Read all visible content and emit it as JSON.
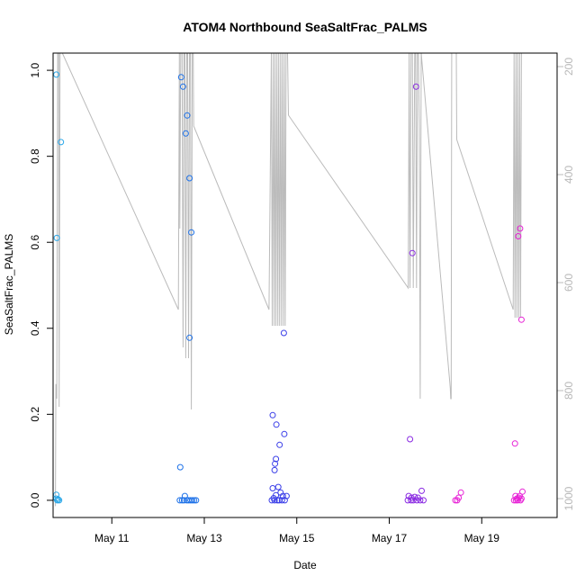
{
  "chart_data": {
    "type": "scatter",
    "title": "ATOM4 Northbound SeaSaltFrac_PALMS",
    "xlabel": "Date",
    "ylabel": "SeaSaltFrac_PALMS",
    "x_unit": "day of May 2018",
    "xlim": [
      9.73,
      20.63
    ],
    "ylim": [
      -0.04,
      1.04
    ],
    "x_ticks": [
      {
        "value": 11,
        "label": "May 11"
      },
      {
        "value": 13,
        "label": "May 13"
      },
      {
        "value": 15,
        "label": "May 15"
      },
      {
        "value": 17,
        "label": "May 17"
      },
      {
        "value": 19,
        "label": "May 19"
      }
    ],
    "y_ticks": [
      0.0,
      0.2,
      0.4,
      0.6,
      0.8,
      1.0
    ],
    "secondary_axis": {
      "side": "right",
      "color": "#bbbbbb",
      "inverted": true,
      "lim": [
        1035,
        175
      ],
      "ticks": [
        200,
        400,
        600,
        800,
        1000
      ],
      "description": "pressure profile (grey line)"
    },
    "color_scale": "cyan-blue-purple-magenta by time",
    "series": [
      {
        "color": "#29a7e8",
        "points": [
          [
            9.8,
            0.99
          ],
          [
            9.81,
            0.61
          ],
          [
            9.9,
            0.833
          ],
          [
            9.8,
            0.013
          ],
          [
            9.8,
            0.004
          ],
          [
            9.82,
            0.0
          ],
          [
            9.84,
            0.002
          ],
          [
            9.86,
            0.0
          ]
        ]
      },
      {
        "color": "#1f72e8",
        "points": [
          [
            12.5,
            0.984
          ],
          [
            12.54,
            0.962
          ],
          [
            12.6,
            0.853
          ],
          [
            12.63,
            0.895
          ],
          [
            12.68,
            0.749
          ],
          [
            12.72,
            0.623
          ],
          [
            12.68,
            0.378
          ],
          [
            12.48,
            0.077
          ],
          [
            12.58,
            0.01
          ],
          [
            12.47,
            0.0
          ],
          [
            12.52,
            0.0
          ],
          [
            12.56,
            0.0
          ],
          [
            12.62,
            0.0
          ],
          [
            12.66,
            0.0
          ],
          [
            12.7,
            0.0
          ],
          [
            12.74,
            0.0
          ],
          [
            12.78,
            0.0
          ],
          [
            12.82,
            0.0
          ]
        ]
      },
      {
        "color": "#3a3ee8",
        "points": [
          [
            14.48,
            0.198
          ],
          [
            14.56,
            0.176
          ],
          [
            14.73,
            0.154
          ],
          [
            14.63,
            0.129
          ],
          [
            14.55,
            0.096
          ],
          [
            14.53,
            0.085
          ],
          [
            14.52,
            0.07
          ],
          [
            14.72,
            0.389
          ],
          [
            14.48,
            0.028
          ],
          [
            14.6,
            0.031
          ],
          [
            14.5,
            0.005
          ],
          [
            14.55,
            0.012
          ],
          [
            14.65,
            0.018
          ],
          [
            14.7,
            0.01
          ],
          [
            14.78,
            0.01
          ],
          [
            14.46,
            0.0
          ],
          [
            14.52,
            0.0
          ],
          [
            14.58,
            0.0
          ],
          [
            14.62,
            0.0
          ],
          [
            14.68,
            0.0
          ],
          [
            14.74,
            0.0
          ]
        ]
      },
      {
        "color": "#8a2be2",
        "points": [
          [
            17.58,
            0.962
          ],
          [
            17.5,
            0.575
          ],
          [
            17.45,
            0.142
          ],
          [
            17.7,
            0.022
          ],
          [
            17.42,
            0.01
          ],
          [
            17.48,
            0.006
          ],
          [
            17.55,
            0.008
          ],
          [
            17.62,
            0.006
          ],
          [
            17.4,
            0.0
          ],
          [
            17.47,
            0.0
          ],
          [
            17.52,
            0.0
          ],
          [
            17.6,
            0.0
          ],
          [
            17.67,
            0.0
          ],
          [
            17.74,
            0.0
          ]
        ]
      },
      {
        "color": "#e722d6",
        "points": [
          [
            19.83,
            0.632
          ],
          [
            19.79,
            0.614
          ],
          [
            19.86,
            0.42
          ],
          [
            19.72,
            0.132
          ],
          [
            18.55,
            0.018
          ],
          [
            18.5,
            0.006
          ],
          [
            18.43,
            0.0
          ],
          [
            18.47,
            0.0
          ],
          [
            19.88,
            0.02
          ],
          [
            19.73,
            0.01
          ],
          [
            19.82,
            0.01
          ],
          [
            19.7,
            0.0
          ],
          [
            19.74,
            0.0
          ],
          [
            19.78,
            0.0
          ],
          [
            19.84,
            0.0
          ],
          [
            19.76,
            0.004
          ],
          [
            19.8,
            0.006
          ],
          [
            19.86,
            0.004
          ]
        ]
      }
    ],
    "pressure_line": [
      [
        9.78,
        1014
      ],
      [
        9.79,
        788
      ],
      [
        9.81,
        815
      ],
      [
        9.83,
        165
      ],
      [
        9.85,
        165
      ],
      [
        9.86,
        830
      ],
      [
        9.88,
        165
      ],
      [
        9.9,
        165
      ],
      [
        9.93,
        165
      ],
      [
        12.44,
        650
      ],
      [
        12.46,
        165
      ],
      [
        12.47,
        500
      ],
      [
        12.49,
        165
      ],
      [
        12.52,
        165
      ],
      [
        12.54,
        720
      ],
      [
        12.56,
        165
      ],
      [
        12.58,
        165
      ],
      [
        12.6,
        740
      ],
      [
        12.62,
        165
      ],
      [
        12.64,
        165
      ],
      [
        12.66,
        740
      ],
      [
        12.68,
        165
      ],
      [
        12.7,
        165
      ],
      [
        12.72,
        835
      ],
      [
        12.74,
        165
      ],
      [
        12.76,
        165
      ],
      [
        12.77,
        310
      ],
      [
        14.4,
        650
      ],
      [
        14.45,
        165
      ],
      [
        14.47,
        680
      ],
      [
        14.49,
        165
      ],
      [
        14.51,
        680
      ],
      [
        14.53,
        165
      ],
      [
        14.55,
        680
      ],
      [
        14.57,
        165
      ],
      [
        14.59,
        680
      ],
      [
        14.61,
        165
      ],
      [
        14.63,
        680
      ],
      [
        14.65,
        165
      ],
      [
        14.67,
        680
      ],
      [
        14.69,
        165
      ],
      [
        14.71,
        680
      ],
      [
        14.73,
        165
      ],
      [
        14.75,
        680
      ],
      [
        14.77,
        165
      ],
      [
        14.8,
        165
      ],
      [
        14.82,
        290
      ],
      [
        17.41,
        610
      ],
      [
        17.43,
        165
      ],
      [
        17.45,
        610
      ],
      [
        17.47,
        165
      ],
      [
        17.5,
        165
      ],
      [
        17.52,
        610
      ],
      [
        17.55,
        165
      ],
      [
        17.57,
        165
      ],
      [
        17.59,
        610
      ],
      [
        17.61,
        165
      ],
      [
        17.63,
        165
      ],
      [
        17.65,
        310
      ],
      [
        17.67,
        815
      ],
      [
        17.69,
        165
      ],
      [
        18.32,
        795
      ],
      [
        18.33,
        815
      ],
      [
        18.34,
        815
      ],
      [
        18.35,
        165
      ],
      [
        18.37,
        165
      ],
      [
        18.4,
        165
      ],
      [
        18.43,
        165
      ],
      [
        18.45,
        165
      ],
      [
        18.46,
        335
      ],
      [
        19.68,
        650
      ],
      [
        19.7,
        165
      ],
      [
        19.72,
        665
      ],
      [
        19.74,
        165
      ],
      [
        19.76,
        665
      ],
      [
        19.78,
        165
      ],
      [
        19.8,
        665
      ],
      [
        19.82,
        165
      ],
      [
        19.84,
        665
      ],
      [
        19.86,
        165
      ],
      [
        19.88,
        165
      ]
    ]
  }
}
